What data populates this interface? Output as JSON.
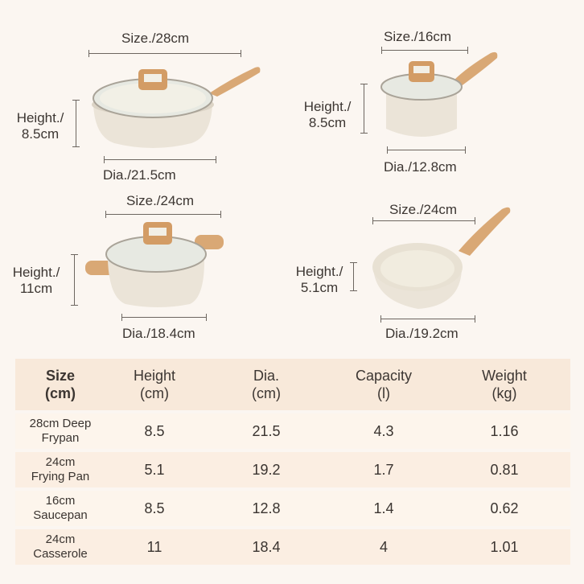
{
  "products": {
    "deep_frypan": {
      "size": "Size./28cm",
      "height": "Height./\n8.5cm",
      "dia": "Dia./21.5cm"
    },
    "saucepan": {
      "size": "Size./16cm",
      "height": "Height./\n8.5cm",
      "dia": "Dia./12.8cm"
    },
    "casserole": {
      "size": "Size./24cm",
      "height": "Height./\n11cm",
      "dia": "Dia./18.4cm"
    },
    "frying_pan": {
      "size": "Size./24cm",
      "height": "Height./\n5.1cm",
      "dia": "Dia./19.2cm"
    }
  },
  "table": {
    "headers": [
      {
        "line1": "Size",
        "line2": "(cm)"
      },
      {
        "line1": "Height",
        "line2": "(cm)"
      },
      {
        "line1": "Dia.",
        "line2": "(cm)"
      },
      {
        "line1": "Capacity",
        "line2": "(l)"
      },
      {
        "line1": "Weight",
        "line2": "(kg)"
      }
    ],
    "rows": [
      {
        "name1": "28cm Deep",
        "name2": "Frypan",
        "height": "8.5",
        "dia": "21.5",
        "capacity": "4.3",
        "weight": "1.16"
      },
      {
        "name1": "24cm",
        "name2": "Frying Pan",
        "height": "5.1",
        "dia": "19.2",
        "capacity": "1.7",
        "weight": "0.81"
      },
      {
        "name1": "16cm",
        "name2": "Saucepan",
        "height": "8.5",
        "dia": "12.8",
        "capacity": "1.4",
        "weight": "0.62"
      },
      {
        "name1": "24cm",
        "name2": "Casserole",
        "height": "11",
        "dia": "18.4",
        "capacity": "4",
        "weight": "1.01"
      }
    ]
  },
  "colors": {
    "background": "#fbf6f1",
    "header_row": "#f8e9da",
    "body_row": "#fbeee2",
    "pot_body": "#ece6da",
    "handle_wood": "#d9a875"
  }
}
